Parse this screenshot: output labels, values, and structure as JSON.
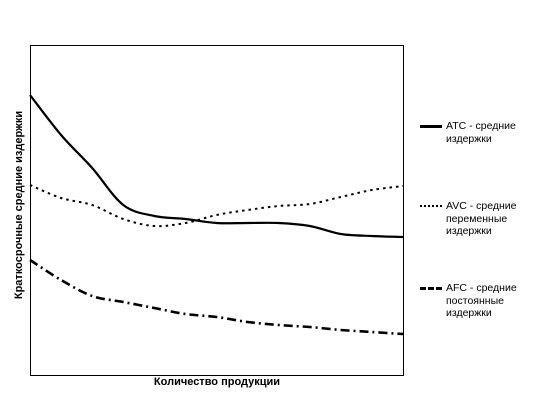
{
  "chart_data": {
    "type": "line",
    "xlabel": "Количество продукции",
    "ylabel": "Краткосрочные средние издержки",
    "legend_position": "right",
    "grid": false,
    "series": [
      {
        "name": "ATC - средние издержки",
        "style": "solid",
        "values": [
          50,
          90,
          123,
          160,
          171,
          174,
          178,
          178,
          178,
          181,
          189,
          191,
          192
        ]
      },
      {
        "name": "AVC - средние переменные издержки",
        "style": "dotted",
        "values": [
          140,
          153,
          160,
          174,
          181,
          178,
          170,
          165,
          161,
          159,
          152,
          145,
          141
        ]
      },
      {
        "name": "AFC - средние постоянные издержки",
        "style": "dashdot",
        "values": [
          215,
          235,
          251,
          257,
          263,
          269,
          272,
          277,
          280,
          282,
          285,
          287,
          289
        ]
      }
    ],
    "x_count": 13
  },
  "legend": {
    "items": [
      "ATC - средние\nиздержки",
      "AVC - средние\nпеременные\nиздержки",
      "AFC - средние\nпостоянные\nиздержки"
    ]
  }
}
